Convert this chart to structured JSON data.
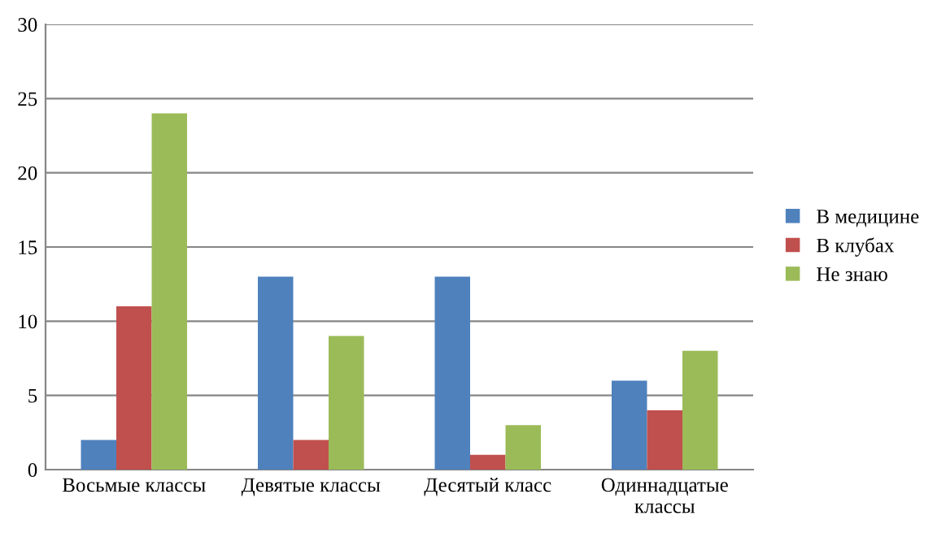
{
  "chart_data": {
    "type": "bar",
    "categories": [
      "Восьмые классы",
      "Девятые классы",
      "Десятый класс",
      "Одиннадцатые классы"
    ],
    "series": [
      {
        "name": "В медицине",
        "color": "#4f81bd",
        "values": [
          2,
          13,
          13,
          6
        ]
      },
      {
        "name": "В клубах",
        "color": "#c0504d",
        "values": [
          11,
          2,
          1,
          4
        ]
      },
      {
        "name": "Не знаю",
        "color": "#9bbb59",
        "values": [
          24,
          9,
          3,
          8
        ]
      }
    ],
    "ylim": [
      0,
      30
    ],
    "yticks": [
      0,
      5,
      10,
      15,
      20,
      25,
      30
    ],
    "grid": "y",
    "legend": "right"
  }
}
